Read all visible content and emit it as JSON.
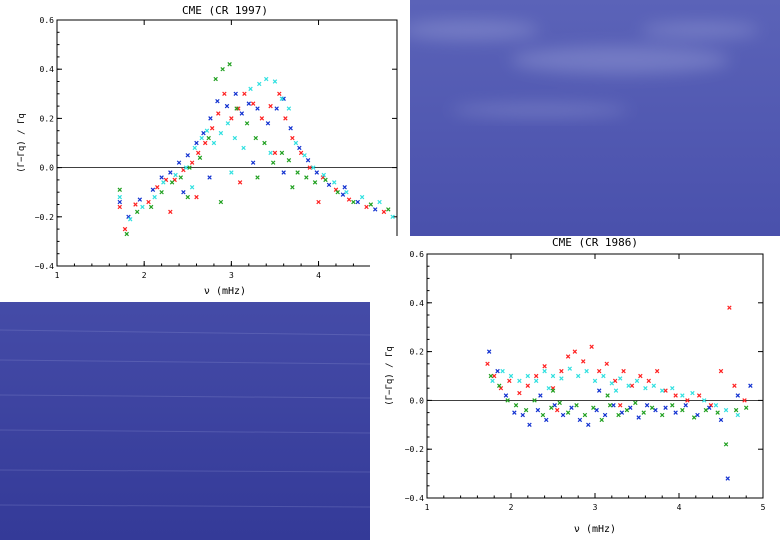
{
  "colors": {
    "series": [
      "#ff2020",
      "#1030d0",
      "#20a020",
      "#30e0e0"
    ],
    "background": "#3a3fa8"
  },
  "chart_data": [
    {
      "type": "scatter",
      "title": "CME (CR 1997)",
      "xlabel": "ν (mHz)",
      "ylabel": "(Γ−Γq) / Γq",
      "xlim": [
        1,
        4.9
      ],
      "ylim": [
        -0.4,
        0.6
      ],
      "xticks": [
        "1",
        "2",
        "3",
        "4"
      ],
      "yticks": [
        "−0.4",
        "−0.2",
        "0.0",
        "0.2",
        "0.4",
        "0.6"
      ],
      "zero_line": true,
      "series": [
        {
          "color": "#ff2020",
          "points": [
            [
              1.72,
              -0.16
            ],
            [
              1.78,
              -0.25
            ],
            [
              1.9,
              -0.15
            ],
            [
              2.05,
              -0.14
            ],
            [
              2.15,
              -0.08
            ],
            [
              2.25,
              -0.05
            ],
            [
              2.35,
              -0.05
            ],
            [
              2.45,
              -0.01
            ],
            [
              2.55,
              0.02
            ],
            [
              2.62,
              0.06
            ],
            [
              2.7,
              0.1
            ],
            [
              2.78,
              0.16
            ],
            [
              2.85,
              0.22
            ],
            [
              2.92,
              0.3
            ],
            [
              3.0,
              0.2
            ],
            [
              3.08,
              0.24
            ],
            [
              3.15,
              0.3
            ],
            [
              3.25,
              0.26
            ],
            [
              3.35,
              0.2
            ],
            [
              3.45,
              0.25
            ],
            [
              3.55,
              0.3
            ],
            [
              3.62,
              0.2
            ],
            [
              3.7,
              0.12
            ],
            [
              3.8,
              0.06
            ],
            [
              3.9,
              0.0
            ],
            [
              4.05,
              -0.04
            ],
            [
              4.2,
              -0.09
            ],
            [
              4.35,
              -0.13
            ],
            [
              4.55,
              -0.16
            ],
            [
              4.75,
              -0.18
            ],
            [
              2.3,
              -0.18
            ],
            [
              2.6,
              -0.12
            ],
            [
              3.1,
              -0.06
            ],
            [
              3.5,
              0.06
            ],
            [
              4.0,
              -0.14
            ]
          ]
        },
        {
          "color": "#1030d0",
          "points": [
            [
              1.72,
              -0.14
            ],
            [
              1.82,
              -0.2
            ],
            [
              1.95,
              -0.13
            ],
            [
              2.1,
              -0.09
            ],
            [
              2.2,
              -0.04
            ],
            [
              2.3,
              -0.02
            ],
            [
              2.4,
              0.02
            ],
            [
              2.5,
              0.05
            ],
            [
              2.6,
              0.1
            ],
            [
              2.68,
              0.14
            ],
            [
              2.76,
              0.2
            ],
            [
              2.84,
              0.27
            ],
            [
              2.95,
              0.25
            ],
            [
              3.05,
              0.3
            ],
            [
              3.12,
              0.22
            ],
            [
              3.2,
              0.26
            ],
            [
              3.3,
              0.24
            ],
            [
              3.42,
              0.18
            ],
            [
              3.52,
              0.24
            ],
            [
              3.6,
              0.28
            ],
            [
              3.68,
              0.16
            ],
            [
              3.78,
              0.08
            ],
            [
              3.88,
              0.03
            ],
            [
              3.98,
              -0.02
            ],
            [
              4.12,
              -0.07
            ],
            [
              4.28,
              -0.11
            ],
            [
              4.45,
              -0.14
            ],
            [
              4.65,
              -0.17
            ],
            [
              2.45,
              -0.1
            ],
            [
              2.75,
              -0.04
            ],
            [
              3.25,
              0.02
            ],
            [
              3.6,
              -0.02
            ],
            [
              4.3,
              -0.08
            ]
          ]
        },
        {
          "color": "#20a020",
          "points": [
            [
              1.72,
              -0.09
            ],
            [
              1.8,
              -0.27
            ],
            [
              1.92,
              -0.18
            ],
            [
              2.08,
              -0.16
            ],
            [
              2.2,
              -0.1
            ],
            [
              2.32,
              -0.06
            ],
            [
              2.42,
              -0.04
            ],
            [
              2.52,
              0.0
            ],
            [
              2.64,
              0.04
            ],
            [
              2.74,
              0.12
            ],
            [
              2.82,
              0.36
            ],
            [
              2.9,
              0.4
            ],
            [
              2.98,
              0.42
            ],
            [
              3.06,
              0.24
            ],
            [
              3.18,
              0.18
            ],
            [
              3.28,
              0.12
            ],
            [
              3.38,
              0.1
            ],
            [
              3.48,
              0.02
            ],
            [
              3.58,
              0.06
            ],
            [
              3.66,
              0.03
            ],
            [
              3.76,
              -0.02
            ],
            [
              3.86,
              -0.04
            ],
            [
              3.96,
              -0.06
            ],
            [
              4.08,
              -0.05
            ],
            [
              4.22,
              -0.1
            ],
            [
              4.4,
              -0.14
            ],
            [
              4.6,
              -0.15
            ],
            [
              4.8,
              -0.17
            ],
            [
              2.5,
              -0.12
            ],
            [
              2.88,
              -0.14
            ],
            [
              3.3,
              -0.04
            ],
            [
              3.7,
              -0.08
            ]
          ]
        },
        {
          "color": "#30e0e0",
          "points": [
            [
              1.72,
              -0.12
            ],
            [
              1.84,
              -0.21
            ],
            [
              1.98,
              -0.16
            ],
            [
              2.12,
              -0.12
            ],
            [
              2.22,
              -0.06
            ],
            [
              2.36,
              -0.03
            ],
            [
              2.48,
              0.0
            ],
            [
              2.58,
              0.08
            ],
            [
              2.66,
              0.12
            ],
            [
              2.72,
              0.15
            ],
            [
              2.8,
              0.1
            ],
            [
              2.88,
              0.14
            ],
            [
              2.96,
              0.18
            ],
            [
              3.04,
              0.12
            ],
            [
              3.14,
              0.08
            ],
            [
              3.22,
              0.32
            ],
            [
              3.32,
              0.34
            ],
            [
              3.4,
              0.36
            ],
            [
              3.5,
              0.35
            ],
            [
              3.58,
              0.28
            ],
            [
              3.66,
              0.24
            ],
            [
              3.74,
              0.1
            ],
            [
              3.84,
              0.05
            ],
            [
              3.94,
              0.0
            ],
            [
              4.06,
              -0.03
            ],
            [
              4.18,
              -0.06
            ],
            [
              4.32,
              -0.1
            ],
            [
              4.5,
              -0.12
            ],
            [
              4.7,
              -0.14
            ],
            [
              4.85,
              -0.2
            ],
            [
              2.55,
              -0.08
            ],
            [
              3.0,
              -0.02
            ],
            [
              3.45,
              0.06
            ]
          ]
        }
      ]
    },
    {
      "type": "scatter",
      "title": "CME (CR 1986)",
      "xlabel": "ν (mHz)",
      "ylabel": "(Γ−Γq) / Γq",
      "xlim": [
        1,
        5
      ],
      "ylim": [
        -0.4,
        0.6
      ],
      "xticks": [
        "1",
        "2",
        "3",
        "4",
        "5"
      ],
      "yticks": [
        "−0.4",
        "−0.2",
        "0.0",
        "0.2",
        "0.4",
        "0.6"
      ],
      "zero_line": true,
      "series": [
        {
          "color": "#ff2020",
          "points": [
            [
              1.72,
              0.15
            ],
            [
              1.8,
              0.1
            ],
            [
              1.88,
              0.05
            ],
            [
              1.98,
              0.08
            ],
            [
              2.1,
              0.03
            ],
            [
              2.2,
              0.06
            ],
            [
              2.3,
              0.1
            ],
            [
              2.4,
              0.14
            ],
            [
              2.5,
              0.05
            ],
            [
              2.6,
              0.12
            ],
            [
              2.68,
              0.18
            ],
            [
              2.76,
              0.2
            ],
            [
              2.86,
              0.16
            ],
            [
              2.96,
              0.22
            ],
            [
              3.05,
              0.12
            ],
            [
              3.14,
              0.15
            ],
            [
              3.24,
              0.08
            ],
            [
              3.34,
              0.12
            ],
            [
              3.44,
              0.06
            ],
            [
              3.54,
              0.1
            ],
            [
              3.64,
              0.08
            ],
            [
              3.74,
              0.12
            ],
            [
              3.84,
              0.04
            ],
            [
              3.96,
              0.02
            ],
            [
              4.1,
              0.0
            ],
            [
              4.24,
              0.02
            ],
            [
              4.38,
              -0.02
            ],
            [
              4.5,
              0.12
            ],
            [
              4.6,
              0.38
            ],
            [
              4.66,
              0.06
            ],
            [
              4.78,
              0.0
            ],
            [
              2.55,
              -0.04
            ],
            [
              3.3,
              -0.02
            ]
          ]
        },
        {
          "color": "#1030d0",
          "points": [
            [
              1.74,
              0.2
            ],
            [
              1.84,
              0.12
            ],
            [
              1.94,
              0.02
            ],
            [
              2.04,
              -0.05
            ],
            [
              2.14,
              -0.06
            ],
            [
              2.22,
              -0.1
            ],
            [
              2.32,
              -0.04
            ],
            [
              2.42,
              -0.08
            ],
            [
              2.52,
              -0.02
            ],
            [
              2.62,
              -0.06
            ],
            [
              2.72,
              -0.03
            ],
            [
              2.82,
              -0.08
            ],
            [
              2.92,
              -0.1
            ],
            [
              3.02,
              -0.04
            ],
            [
              3.12,
              -0.06
            ],
            [
              3.22,
              -0.02
            ],
            [
              3.32,
              -0.05
            ],
            [
              3.42,
              -0.03
            ],
            [
              3.52,
              -0.07
            ],
            [
              3.62,
              -0.02
            ],
            [
              3.72,
              -0.04
            ],
            [
              3.84,
              -0.03
            ],
            [
              3.96,
              -0.05
            ],
            [
              4.08,
              -0.02
            ],
            [
              4.22,
              -0.06
            ],
            [
              4.36,
              -0.03
            ],
            [
              4.5,
              -0.08
            ],
            [
              4.58,
              -0.32
            ],
            [
              4.7,
              0.02
            ],
            [
              4.85,
              0.06
            ],
            [
              2.35,
              0.02
            ],
            [
              3.05,
              0.04
            ]
          ]
        },
        {
          "color": "#20a020",
          "points": [
            [
              1.76,
              0.1
            ],
            [
              1.86,
              0.06
            ],
            [
              1.96,
              0.0
            ],
            [
              2.06,
              -0.02
            ],
            [
              2.18,
              -0.04
            ],
            [
              2.28,
              0.0
            ],
            [
              2.38,
              -0.06
            ],
            [
              2.48,
              -0.03
            ],
            [
              2.58,
              -0.01
            ],
            [
              2.68,
              -0.05
            ],
            [
              2.78,
              -0.02
            ],
            [
              2.88,
              -0.06
            ],
            [
              2.98,
              -0.03
            ],
            [
              3.08,
              -0.08
            ],
            [
              3.18,
              -0.02
            ],
            [
              3.28,
              -0.06
            ],
            [
              3.38,
              -0.04
            ],
            [
              3.48,
              -0.01
            ],
            [
              3.58,
              -0.05
            ],
            [
              3.68,
              -0.03
            ],
            [
              3.8,
              -0.06
            ],
            [
              3.92,
              -0.02
            ],
            [
              4.04,
              -0.04
            ],
            [
              4.18,
              -0.07
            ],
            [
              4.32,
              -0.04
            ],
            [
              4.46,
              -0.05
            ],
            [
              4.56,
              -0.18
            ],
            [
              4.68,
              -0.04
            ],
            [
              4.8,
              -0.03
            ],
            [
              2.5,
              0.04
            ],
            [
              3.15,
              0.02
            ]
          ]
        },
        {
          "color": "#30e0e0",
          "points": [
            [
              1.78,
              0.08
            ],
            [
              1.9,
              0.12
            ],
            [
              2.0,
              0.1
            ],
            [
              2.1,
              0.08
            ],
            [
              2.2,
              0.1
            ],
            [
              2.3,
              0.08
            ],
            [
              2.4,
              0.12
            ],
            [
              2.5,
              0.1
            ],
            [
              2.6,
              0.09
            ],
            [
              2.7,
              0.13
            ],
            [
              2.8,
              0.1
            ],
            [
              2.9,
              0.12
            ],
            [
              3.0,
              0.08
            ],
            [
              3.1,
              0.1
            ],
            [
              3.2,
              0.07
            ],
            [
              3.3,
              0.09
            ],
            [
              3.4,
              0.06
            ],
            [
              3.5,
              0.08
            ],
            [
              3.6,
              0.05
            ],
            [
              3.7,
              0.06
            ],
            [
              3.8,
              0.04
            ],
            [
              3.92,
              0.05
            ],
            [
              4.04,
              0.02
            ],
            [
              4.16,
              0.03
            ],
            [
              4.3,
              0.0
            ],
            [
              4.44,
              -0.02
            ],
            [
              4.56,
              -0.04
            ],
            [
              4.7,
              -0.06
            ],
            [
              2.45,
              0.05
            ],
            [
              3.25,
              0.04
            ]
          ]
        }
      ]
    }
  ]
}
